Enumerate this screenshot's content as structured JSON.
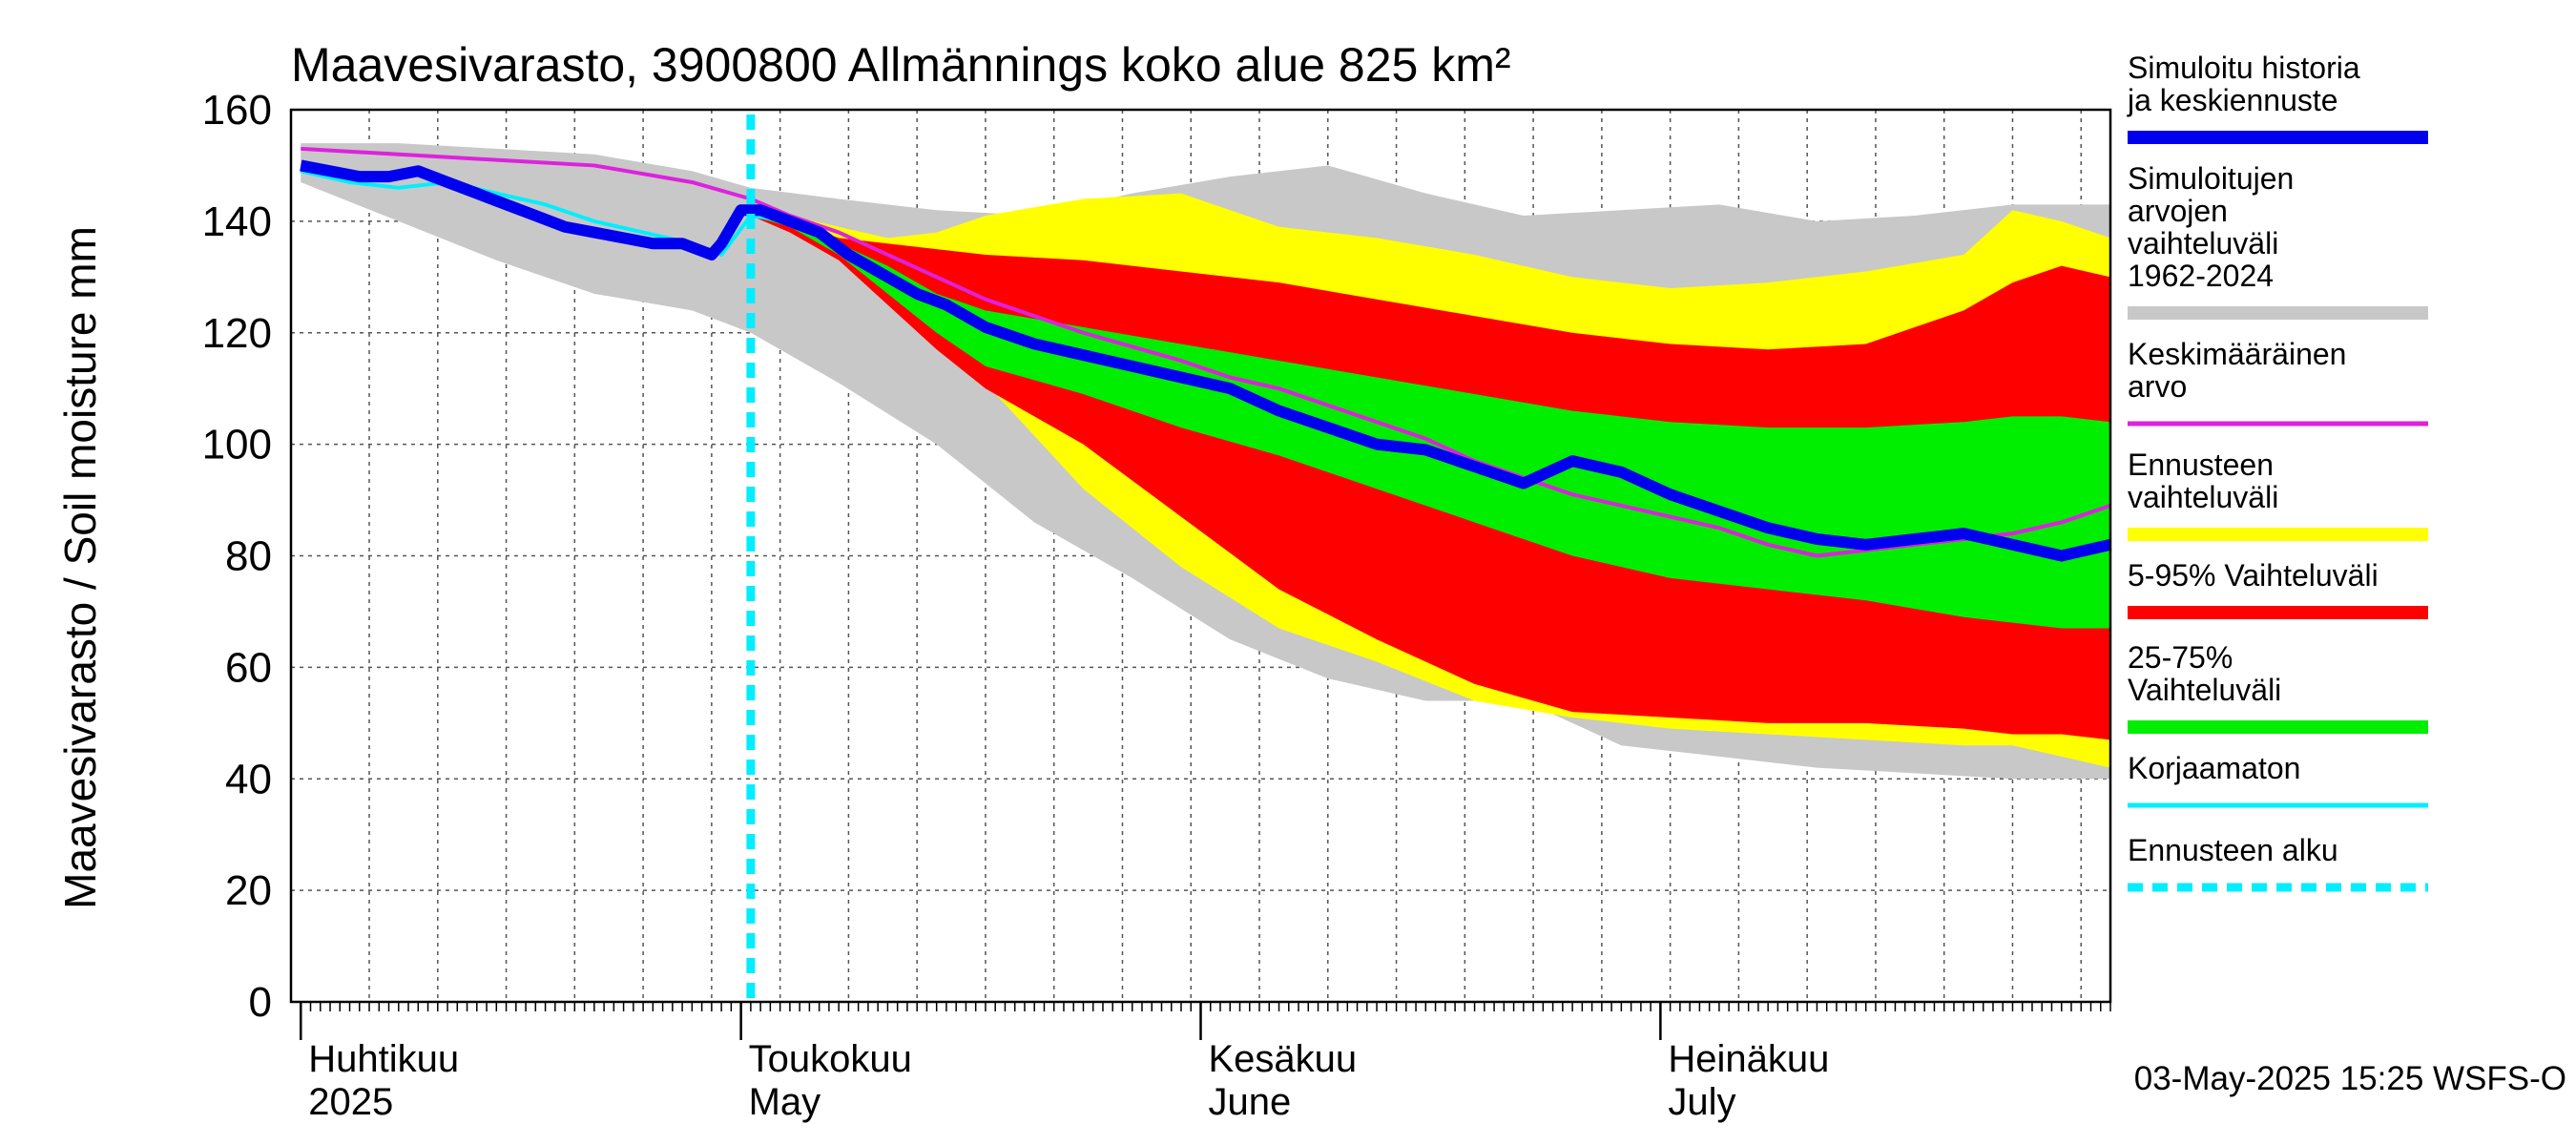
{
  "chart_data": {
    "type": "area",
    "title": "Maavesivarasto, 3900800 Allmännings koko alue 825 km²",
    "ylabel": "Maavesivarasto / Soil moisture   mm",
    "xlabel": "",
    "ylim": [
      0,
      160
    ],
    "yticks": [
      0,
      20,
      40,
      60,
      80,
      100,
      120,
      140,
      160
    ],
    "x_domain_days": [
      -1,
      185
    ],
    "grid": true,
    "timestamp": "03-May-2025 15:25 WSFS-O",
    "forecast_start_day": 46,
    "month_labels": [
      {
        "fi": "Huhtikuu",
        "en": "2025",
        "day": 0
      },
      {
        "fi": "Toukokuu",
        "en": "May",
        "day": 45
      },
      {
        "fi": "Kesäkuu",
        "en": "June",
        "day": 92
      },
      {
        "fi": "Heinäkuu",
        "en": "July",
        "day": 139
      }
    ],
    "legend": [
      {
        "label": "Simuloitu historia ja keskiennuste",
        "color": "#0000ee",
        "style": "thick"
      },
      {
        "label": "Simuloitujen arvojen vaihteluväli 1962-2024",
        "color": "#c8c8c8",
        "style": "thick"
      },
      {
        "label": "Keskimääräinen arvo",
        "color": "#dd22dd",
        "style": "thin"
      },
      {
        "label": "Ennusteen vaihteluväli",
        "color": "#ffff00",
        "style": "thick"
      },
      {
        "label": "5-95% Vaihteluväli",
        "color": "#ff0000",
        "style": "thick"
      },
      {
        "label": "25-75% Vaihteluväli",
        "color": "#00ee00",
        "style": "thick"
      },
      {
        "label": "Korjaamaton",
        "color": "#00eeff",
        "style": "thin"
      },
      {
        "label": "Ennusteen alku",
        "color": "#00eeff",
        "style": "dashed"
      }
    ],
    "series": [
      {
        "name": "Simuloitujen arvojen vaihteluväli 1962-2024",
        "kind": "band",
        "color": "#c8c8c8",
        "x": [
          0,
          10,
          20,
          30,
          40,
          46,
          55,
          65,
          75,
          85,
          95,
          105,
          115,
          125,
          135,
          145,
          155,
          165,
          175,
          185
        ],
        "upper": [
          154,
          154,
          153,
          152,
          149,
          146,
          144,
          142,
          141,
          145,
          148,
          150,
          145,
          141,
          142,
          143,
          140,
          141,
          143,
          143
        ],
        "lower": [
          147,
          140,
          133,
          127,
          124,
          120,
          111,
          100,
          86,
          76,
          65,
          58,
          54,
          54,
          46,
          44,
          42,
          41,
          40,
          40
        ]
      },
      {
        "name": "Ennusteen vaihteluväli",
        "kind": "band",
        "color": "#ffff00",
        "x": [
          46,
          50,
          55,
          60,
          65,
          70,
          80,
          90,
          100,
          110,
          120,
          130,
          140,
          150,
          160,
          170,
          175,
          180,
          185
        ],
        "upper": [
          142,
          141,
          139,
          137,
          138,
          141,
          144,
          145,
          139,
          137,
          134,
          130,
          128,
          129,
          131,
          134,
          142,
          140,
          137
        ],
        "lower": [
          141,
          139,
          135,
          129,
          121,
          111,
          92,
          78,
          67,
          61,
          54,
          51,
          49,
          48,
          47,
          46,
          46,
          44,
          42
        ]
      },
      {
        "name": "5-95% Vaihteluväli",
        "kind": "band",
        "color": "#ff0000",
        "x": [
          46,
          50,
          55,
          60,
          65,
          70,
          80,
          90,
          100,
          110,
          120,
          130,
          140,
          150,
          160,
          170,
          175,
          180,
          185
        ],
        "upper": [
          142,
          140,
          137,
          136,
          135,
          134,
          133,
          131,
          129,
          126,
          123,
          120,
          118,
          117,
          118,
          124,
          129,
          132,
          130
        ],
        "lower": [
          141,
          138,
          133,
          125,
          117,
          110,
          100,
          87,
          74,
          65,
          57,
          52,
          51,
          50,
          50,
          49,
          48,
          48,
          47
        ]
      },
      {
        "name": "25-75% Vaihteluväli",
        "kind": "band",
        "color": "#00ee00",
        "x": [
          46,
          50,
          55,
          60,
          65,
          70,
          80,
          90,
          100,
          110,
          120,
          130,
          140,
          150,
          160,
          170,
          175,
          180,
          185
        ],
        "upper": [
          142,
          140,
          136,
          132,
          127,
          124,
          121,
          118,
          115,
          112,
          109,
          106,
          104,
          103,
          103,
          104,
          105,
          105,
          104
        ],
        "lower": [
          141,
          139,
          134,
          127,
          120,
          114,
          109,
          103,
          98,
          92,
          86,
          80,
          76,
          74,
          72,
          69,
          68,
          67,
          67
        ]
      },
      {
        "name": "Keskimääräinen arvo",
        "kind": "line",
        "color": "#dd22dd",
        "x": [
          0,
          10,
          20,
          30,
          40,
          46,
          50,
          55,
          60,
          65,
          70,
          80,
          90,
          95,
          100,
          105,
          110,
          115,
          120,
          125,
          130,
          140,
          145,
          150,
          155,
          160,
          165,
          170,
          175,
          180,
          185
        ],
        "y": [
          153,
          152,
          151,
          150,
          147,
          144,
          141,
          138,
          134,
          130,
          126,
          120,
          115,
          112,
          110,
          107,
          104,
          101,
          97,
          94,
          91,
          87,
          85,
          82,
          80,
          81,
          82,
          83,
          84,
          86,
          89
        ]
      },
      {
        "name": "Korjaamaton",
        "kind": "line",
        "color": "#00eeff",
        "x": [
          0,
          5,
          10,
          15,
          20,
          25,
          30,
          35,
          40,
          43,
          46,
          50
        ],
        "y": [
          149,
          147,
          146,
          147,
          145,
          143,
          140,
          138,
          136,
          134,
          141,
          140
        ]
      },
      {
        "name": "Simuloitu historia ja keskiennuste",
        "kind": "line",
        "color": "#0000ee",
        "x": [
          0,
          3,
          6,
          9,
          12,
          15,
          18,
          21,
          24,
          27,
          30,
          33,
          36,
          39,
          42,
          43,
          45,
          47,
          50,
          53,
          56,
          60,
          63,
          66,
          70,
          75,
          80,
          85,
          90,
          95,
          100,
          105,
          110,
          115,
          120,
          125,
          130,
          135,
          140,
          145,
          150,
          155,
          160,
          165,
          170,
          175,
          180,
          185
        ],
        "y": [
          150,
          149,
          148,
          148,
          149,
          147,
          145,
          143,
          141,
          139,
          138,
          137,
          136,
          136,
          134,
          136,
          142,
          142,
          140,
          138,
          134,
          130,
          127,
          125,
          121,
          118,
          116,
          114,
          112,
          110,
          106,
          103,
          100,
          99,
          96,
          93,
          97,
          95,
          91,
          88,
          85,
          83,
          82,
          83,
          84,
          82,
          80,
          82
        ]
      }
    ]
  }
}
